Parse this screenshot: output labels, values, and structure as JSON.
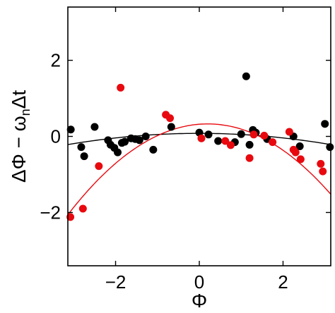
{
  "chart_data": {
    "type": "scatter",
    "title": "",
    "xlabel": "Φ",
    "ylabel": {
      "part1": "ΔΦ − ω",
      "subscript": "n",
      "part2": "Δt"
    },
    "xlim": [
      -3.14,
      3.14
    ],
    "ylim": [
      -3.4,
      3.4
    ],
    "xticks": [
      -2,
      0,
      2
    ],
    "yticks": [
      -2,
      0,
      2
    ],
    "grid": false,
    "colors": {
      "series_black": "#000000",
      "series_red": "#e8090f"
    },
    "series": [
      {
        "color": "black",
        "points": [
          [
            -3.07,
            0.18
          ],
          [
            -2.82,
            -0.28
          ],
          [
            -2.75,
            -0.52
          ],
          [
            -2.5,
            0.25
          ],
          [
            -2.18,
            -0.1
          ],
          [
            -2.12,
            -0.22
          ],
          [
            -2.03,
            -0.3
          ],
          [
            -1.95,
            -0.42
          ],
          [
            -1.85,
            -0.17
          ],
          [
            -1.78,
            -0.14
          ],
          [
            -1.63,
            -0.05
          ],
          [
            -1.53,
            -0.07
          ],
          [
            -1.43,
            -0.1
          ],
          [
            -1.28,
            0.0
          ],
          [
            -1.1,
            -0.35
          ],
          [
            -0.67,
            0.25
          ],
          [
            0.0,
            0.1
          ],
          [
            0.22,
            0.05
          ],
          [
            0.45,
            -0.12
          ],
          [
            0.85,
            -0.15
          ],
          [
            1.0,
            0.06
          ],
          [
            1.12,
            1.58
          ],
          [
            1.2,
            -0.22
          ],
          [
            1.28,
            0.17
          ],
          [
            1.35,
            0.1
          ],
          [
            1.62,
            -0.07
          ],
          [
            2.25,
            0.0
          ],
          [
            2.4,
            -0.26
          ],
          [
            3.0,
            0.33
          ],
          [
            3.12,
            -0.28
          ]
        ],
        "fit": {
          "type": "quadratic",
          "a": -0.03,
          "b": 0.0,
          "c": 0.08
        }
      },
      {
        "color": "red",
        "points": [
          [
            -3.08,
            -2.12
          ],
          [
            -2.78,
            -1.9
          ],
          [
            -2.4,
            -0.78
          ],
          [
            -1.88,
            1.28
          ],
          [
            -0.8,
            0.57
          ],
          [
            -0.7,
            0.48
          ],
          [
            0.05,
            -0.05
          ],
          [
            0.62,
            -0.12
          ],
          [
            0.75,
            -0.23
          ],
          [
            1.2,
            -0.57
          ],
          [
            1.3,
            0.05
          ],
          [
            1.55,
            0.02
          ],
          [
            1.75,
            -0.15
          ],
          [
            2.15,
            0.12
          ],
          [
            2.25,
            -0.35
          ],
          [
            2.3,
            -0.42
          ],
          [
            2.42,
            -0.6
          ],
          [
            2.9,
            -0.72
          ],
          [
            2.95,
            -0.92
          ]
        ],
        "fit": {
          "type": "quadratic",
          "a": -0.214,
          "b": 0.086,
          "c": 0.32
        }
      }
    ]
  }
}
